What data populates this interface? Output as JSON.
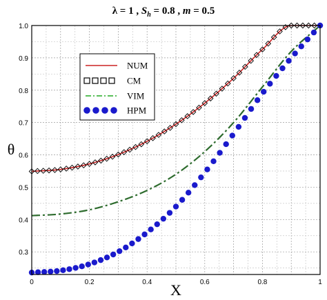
{
  "chart_data": {
    "type": "line",
    "title": {
      "lambda_part": "λ = 1",
      "sh_symbol": "S",
      "sh_sub": "h",
      "sh_value": " = 0.8",
      "m_symbol": "m",
      "m_value": " = 0.5"
    },
    "xlabel": "X",
    "ylabel": "θ",
    "xlim": [
      0,
      1
    ],
    "ylim": [
      0.23,
      1.0
    ],
    "xticks": [
      "0",
      "0.2",
      "0.4",
      "0.6",
      "0.8",
      "1"
    ],
    "xtick_values": [
      0,
      0.2,
      0.4,
      0.6,
      0.8,
      1
    ],
    "yticks": [
      "0.3",
      "0.4",
      "0.5",
      "0.6",
      "0.7",
      "0.8",
      "0.9",
      "1.0"
    ],
    "ytick_values": [
      0.3,
      0.4,
      0.5,
      0.6,
      0.7,
      0.8,
      0.9,
      1.0
    ],
    "grid": true,
    "legend_position": "top-left",
    "x": [
      0,
      0.1,
      0.2,
      0.3,
      0.4,
      0.5,
      0.6,
      0.7,
      0.8,
      0.9,
      1.0
    ],
    "series": [
      {
        "name": "NUM",
        "style": "solid-line",
        "color": "#cc2222",
        "values": [
          0.549,
          0.555,
          0.572,
          0.601,
          0.642,
          0.695,
          0.76,
          0.837,
          0.926,
          1.0,
          1.0
        ]
      },
      {
        "name": "CM",
        "style": "open-square-markers",
        "color": "#000000",
        "values": [
          0.549,
          0.555,
          0.572,
          0.601,
          0.642,
          0.695,
          0.76,
          0.837,
          0.926,
          1.0,
          1.0
        ]
      },
      {
        "name": "VIM",
        "style": "dash-dot-line",
        "color": "#2d6b2d",
        "values": [
          0.412,
          0.417,
          0.43,
          0.455,
          0.49,
          0.54,
          0.61,
          0.7,
          0.81,
          0.92,
          1.0
        ]
      },
      {
        "name": "HPM",
        "style": "filled-circle-markers",
        "color": "#1a1acc",
        "values": [
          0.236,
          0.242,
          0.262,
          0.3,
          0.36,
          0.44,
          0.545,
          0.665,
          0.79,
          0.9,
          1.0
        ]
      }
    ]
  }
}
